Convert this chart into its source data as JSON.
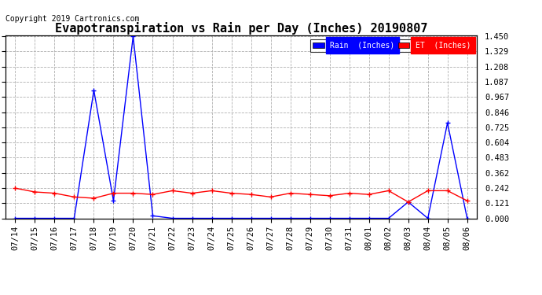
{
  "title": "Evapotranspiration vs Rain per Day (Inches) 20190807",
  "copyright": "Copyright 2019 Cartronics.com",
  "x_labels": [
    "07/14",
    "07/15",
    "07/16",
    "07/17",
    "07/18",
    "07/19",
    "07/20",
    "07/21",
    "07/22",
    "07/23",
    "07/24",
    "07/25",
    "07/26",
    "07/27",
    "07/28",
    "07/29",
    "07/30",
    "07/31",
    "08/01",
    "08/02",
    "08/03",
    "08/04",
    "08/05",
    "08/06"
  ],
  "rain_data": [
    0.0,
    0.0,
    0.0,
    0.0,
    1.02,
    0.14,
    1.45,
    0.02,
    0.0,
    0.0,
    0.0,
    0.0,
    0.0,
    0.0,
    0.0,
    0.0,
    0.0,
    0.0,
    0.0,
    0.0,
    0.13,
    0.0,
    0.76,
    0.0
  ],
  "et_data": [
    0.24,
    0.21,
    0.2,
    0.17,
    0.16,
    0.2,
    0.2,
    0.19,
    0.22,
    0.2,
    0.22,
    0.2,
    0.19,
    0.17,
    0.2,
    0.19,
    0.18,
    0.2,
    0.19,
    0.22,
    0.13,
    0.22,
    0.22,
    0.14
  ],
  "rain_color": "#0000ff",
  "et_color": "#ff0000",
  "ylim_min": 0.0,
  "ylim_max": 1.45,
  "yticks": [
    0.0,
    0.121,
    0.242,
    0.362,
    0.483,
    0.604,
    0.725,
    0.846,
    0.967,
    1.087,
    1.208,
    1.329,
    1.45
  ],
  "bg_color": "#ffffff",
  "grid_color": "#b0b0b0",
  "title_fontsize": 11,
  "copyright_fontsize": 7,
  "tick_fontsize": 7.5,
  "legend_rain_label": "Rain  (Inches)",
  "legend_et_label": "ET  (Inches)",
  "legend_rain_bg": "#0000ff",
  "legend_et_bg": "#ff0000"
}
